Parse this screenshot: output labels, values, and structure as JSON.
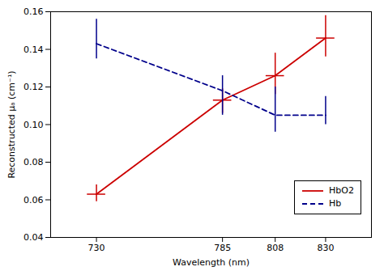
{
  "chart_data": {
    "type": "line",
    "x": [
      730,
      785,
      808,
      830
    ],
    "xlabel": "Wavelength (nm)",
    "ylabel": "Reconstructed μₐ (cm⁻¹)",
    "xlim": [
      710,
      850
    ],
    "ylim": [
      0.04,
      0.16
    ],
    "xticks": [
      730,
      785,
      808,
      830
    ],
    "yticks": [
      0.04,
      0.06,
      0.08,
      {
        "value": 0.1,
        "label": "0.10"
      },
      0.12,
      0.14,
      0.16
    ],
    "grid": false,
    "legend": "lower right",
    "series": [
      {
        "name": "HbO2",
        "color": "#cc0000",
        "line_style": "solid",
        "values": [
          0.063,
          0.113,
          0.126,
          0.146
        ],
        "yerr_upper": [
          0.005,
          0.006,
          0.012,
          0.012
        ],
        "yerr_lower": [
          0.004,
          0.007,
          0.01,
          0.01
        ],
        "xerr": [
          4,
          4,
          4,
          4
        ]
      },
      {
        "name": "Hb",
        "color": "#00008B",
        "line_style": "dashed",
        "values": [
          0.143,
          0.118,
          0.105,
          0.105
        ],
        "yerr_upper": [
          0.013,
          0.008,
          0.015,
          0.01
        ],
        "yerr_lower": [
          0.008,
          0.013,
          0.009,
          0.005
        ]
      }
    ]
  }
}
